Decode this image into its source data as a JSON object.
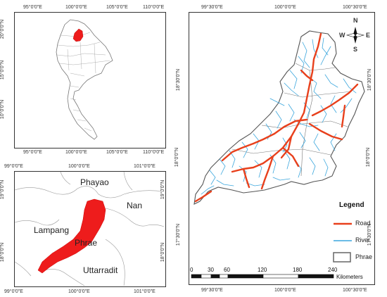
{
  "thailand_map": {
    "top_ticks": [
      "95°0'0\"E",
      "100°0'0\"E",
      "105°0'0\"E",
      "110°0'0\"E"
    ],
    "bottom_ticks": [
      "95°0'0\"E",
      "100°0'0\"E",
      "105°0'0\"E",
      "110°0'0\"E"
    ],
    "left_ticks": [
      "20°0'0\"N",
      "15°0'0\"N",
      "10°0'0\"N"
    ],
    "highlight_color": "#ee1c1c"
  },
  "region_map": {
    "top_ticks": [
      "99°0'0\"E",
      "100°0'0\"E",
      "101°0'0\"E"
    ],
    "bottom_ticks": [
      "99°0'0\"E",
      "100°0'0\"E",
      "101°0'0\"E"
    ],
    "left_ticks": [
      "19°0'0\"N",
      "18°0'0\"N"
    ],
    "right_ticks": [
      "19°0'0\"N",
      "18°0'0\"N"
    ],
    "labels": {
      "phayao": "Phayao",
      "nan": "Nan",
      "lampang": "Lampang",
      "phrae": "Phrae",
      "uttarradit": "Uttarradit"
    },
    "fill_color": "#ee1c1c"
  },
  "detail_map": {
    "top_ticks": [
      "99°30'0\"E",
      "100°0'0\"E",
      "100°30'0\"E"
    ],
    "bottom_ticks": [
      "99°30'0\"E",
      "100°0'0\"E",
      "100°30'0\"E"
    ],
    "left_ticks": [
      "18°30'0\"N",
      "18°0'0\"N",
      "17°30'0\"N"
    ],
    "right_ticks": [
      "18°30'0\"N",
      "18°0'0\"N",
      "17°30'0\"N"
    ],
    "compass": {
      "n": "N",
      "s": "S",
      "e": "E",
      "w": "W"
    },
    "legend": {
      "title": "Legend",
      "items": [
        {
          "label": "Road",
          "color": "#e8401c"
        },
        {
          "label": "River",
          "color": "#3aa6dd"
        },
        {
          "label": "Phrae",
          "color": "#666666"
        }
      ]
    },
    "scale_bar": {
      "ticks": [
        "0",
        "30",
        "60",
        "120",
        "180",
        "240"
      ],
      "unit": "Kilometers"
    }
  }
}
